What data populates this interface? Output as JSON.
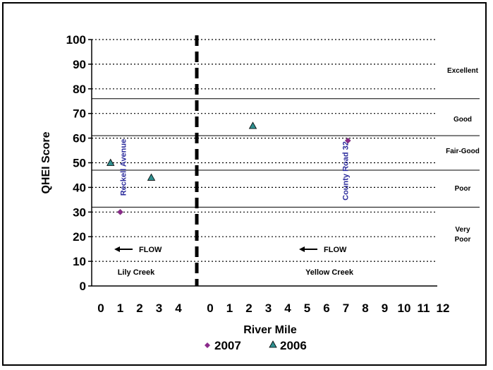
{
  "chart_data": {
    "type": "scatter",
    "ylabel": "QHEI Score",
    "xlabel": "River Mile",
    "ylim": [
      0,
      100
    ],
    "y_ticks": [
      "0",
      "10",
      "20",
      "30",
      "40",
      "50",
      "60",
      "70",
      "80",
      "90",
      "100"
    ],
    "grid": "dotted horizontal",
    "panels": [
      {
        "name": "Lily Creek",
        "xlim": [
          0,
          4
        ],
        "x_ticks": [
          "0",
          "1",
          "2",
          "3",
          "4"
        ],
        "sites": [
          {
            "label": "Reckell Avenue",
            "x": 1.0
          }
        ]
      },
      {
        "name": "Yellow Creek",
        "xlim": [
          0,
          12
        ],
        "x_ticks": [
          "0",
          "1",
          "2",
          "3",
          "4",
          "5",
          "6",
          "7",
          "8",
          "9",
          "10",
          "11",
          "12"
        ],
        "sites": [
          {
            "label": "County Road 32",
            "x": 7.1
          }
        ]
      }
    ],
    "bands": [
      {
        "label": "Excellent",
        "min": 76,
        "max": 100
      },
      {
        "label": "Good",
        "min": 61,
        "max": 76
      },
      {
        "label": "Fair-Good",
        "min": 47,
        "max": 61
      },
      {
        "label": "Poor",
        "min": 32,
        "max": 47
      },
      {
        "label": "Very Poor",
        "min": 0,
        "max": 32
      }
    ],
    "band_lines": [
      76,
      61,
      47,
      32
    ],
    "series": [
      {
        "name": "2007",
        "marker": "diamond",
        "color": "#8b2a8b",
        "points": [
          {
            "panel": 0,
            "x": 1.0,
            "y": 30
          },
          {
            "panel": 1,
            "x": 7.1,
            "y": 59
          }
        ]
      },
      {
        "name": "2006",
        "marker": "triangle",
        "color": "#2f8f8f",
        "points": [
          {
            "panel": 0,
            "x": 0.5,
            "y": 50
          },
          {
            "panel": 0,
            "x": 2.6,
            "y": 44
          },
          {
            "panel": 1,
            "x": 2.2,
            "y": 65
          }
        ]
      }
    ],
    "flow_label": "FLOW",
    "legend_position": "bottom"
  }
}
